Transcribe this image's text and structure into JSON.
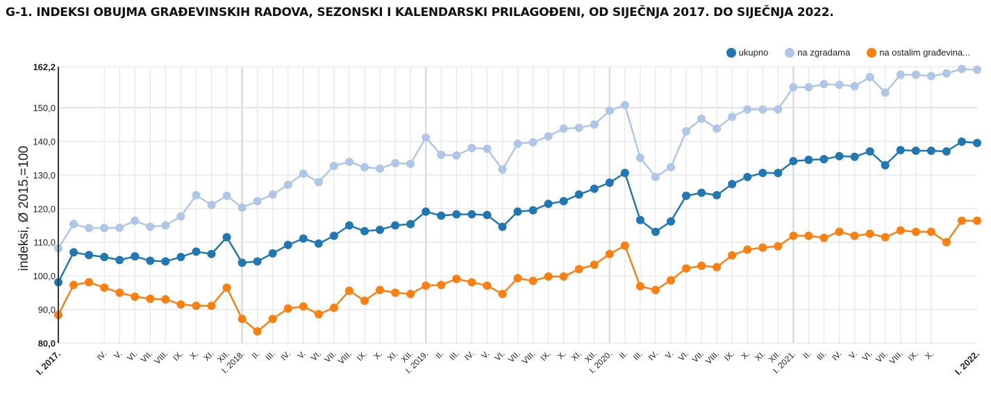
{
  "title": "G-1. INDEKSI OBUJMA GRAĐEVINSKIH RADOVA, SEZONSKI I KALENDARSKI PRILAGOĐENI, OD SIJEČNJA 2017. DO SIJEČNJA 2022.",
  "chart_data": {
    "type": "line",
    "title": "G-1. INDEKSI OBUJMA GRAĐEVINSKIH RADOVA, SEZONSKI I KALENDARSKI PRILAGOĐENI, OD SIJEČNJA 2017. DO SIJEČNJA 2022.",
    "xlabel": "",
    "ylabel": "indeksi, Ø 2015.=100",
    "ylim": [
      80.0,
      162.2
    ],
    "y_ticks": [
      "80,0",
      "90,0",
      "100,0",
      "110,0",
      "120,0",
      "130,0",
      "140,0",
      "150,0",
      "162,2"
    ],
    "y_tick_values": [
      80,
      90,
      100,
      110,
      120,
      130,
      140,
      150,
      162.2
    ],
    "grid": true,
    "legend_position": "top-right",
    "categories": [
      "I. 2017.",
      "",
      "",
      "IV.",
      "V.",
      "VI.",
      "VII.",
      "VIII.",
      "IX.",
      "X.",
      "XI.",
      "XII.",
      "I. 2018.",
      "II.",
      "III.",
      "IV.",
      "V.",
      "VI.",
      "VII.",
      "VIII.",
      "IX.",
      "X.",
      "XI.",
      "XII.",
      "I. 2019.",
      "II.",
      "III.",
      "IV.",
      "V.",
      "VI.",
      "VII.",
      "VIII.",
      "IX.",
      "X.",
      "XI.",
      "XII.",
      "I. 2020.",
      "II.",
      "III.",
      "IV.",
      "V.",
      "VI.",
      "VII.",
      "VIII.",
      "IX.",
      "X.",
      "XI.",
      "XII.",
      "I. 2021.",
      "II.",
      "III.",
      "IV.",
      "V.",
      "VI.",
      "VII.",
      "VIII.",
      "IX.",
      "X.",
      "",
      "",
      "I. 2022."
    ],
    "bold_categories": [
      "I. 2017.",
      "I. 2022."
    ],
    "series": [
      {
        "name": "ukupno",
        "color": "#1f77b4",
        "values": [
          98.1,
          107.0,
          106.2,
          105.6,
          104.7,
          105.8,
          104.5,
          104.3,
          105.6,
          107.2,
          106.5,
          111.5,
          103.9,
          104.3,
          106.7,
          109.2,
          111.1,
          109.6,
          111.9,
          115.0,
          113.3,
          113.7,
          115.0,
          115.4,
          119.1,
          117.9,
          118.3,
          118.3,
          118.1,
          114.6,
          119.1,
          119.5,
          121.4,
          122.2,
          124.2,
          125.9,
          127.7,
          130.6,
          116.6,
          113.1,
          116.2,
          123.8,
          124.7,
          124.0,
          127.3,
          129.4,
          130.6,
          130.6,
          134.1,
          134.5,
          134.7,
          135.6,
          135.4,
          137.0,
          132.9,
          137.4,
          137.2,
          137.2,
          137.0,
          139.9,
          139.5
        ]
      },
      {
        "name": "na zgradama",
        "color": "#aec7e8",
        "values": [
          108.2,
          115.4,
          114.2,
          114.2,
          114.3,
          116.4,
          114.6,
          115.0,
          117.7,
          124.0,
          121.1,
          123.8,
          120.3,
          122.2,
          124.2,
          127.1,
          130.4,
          127.9,
          132.7,
          133.9,
          132.3,
          131.9,
          133.5,
          133.3,
          141.1,
          136.0,
          135.8,
          138.0,
          137.8,
          131.6,
          139.3,
          139.7,
          141.5,
          143.8,
          144.0,
          145.0,
          149.1,
          150.8,
          135.1,
          129.4,
          132.3,
          143.0,
          146.7,
          143.8,
          147.3,
          149.5,
          149.5,
          149.5,
          156.1,
          156.1,
          157.0,
          156.8,
          156.4,
          159.1,
          154.5,
          159.8,
          159.8,
          159.4,
          160.2,
          161.5,
          161.3
        ]
      },
      {
        "name": "na ostalim građevina...",
        "color": "#ff7f0e",
        "values": [
          88.4,
          97.3,
          98.1,
          96.5,
          95.0,
          93.8,
          93.2,
          93.0,
          91.5,
          91.1,
          91.1,
          96.5,
          87.2,
          83.5,
          87.2,
          90.3,
          90.9,
          88.6,
          90.5,
          95.6,
          92.6,
          95.8,
          95.0,
          94.6,
          97.1,
          97.3,
          99.1,
          98.1,
          97.1,
          94.6,
          99.3,
          98.5,
          99.8,
          99.8,
          102.0,
          103.3,
          106.5,
          109.0,
          96.9,
          95.8,
          98.7,
          102.2,
          103.0,
          102.6,
          106.1,
          107.8,
          108.4,
          108.8,
          111.9,
          111.9,
          111.3,
          113.1,
          111.9,
          112.5,
          111.5,
          113.5,
          113.1,
          113.1,
          110.0,
          116.4,
          116.4
        ]
      }
    ]
  }
}
